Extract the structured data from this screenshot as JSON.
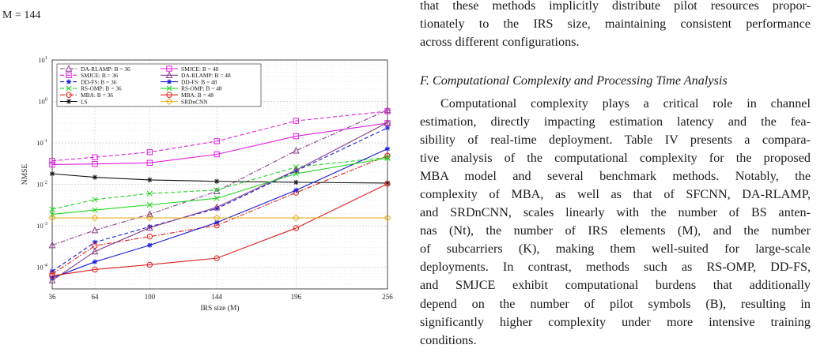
{
  "header_math": "M = 144",
  "right_column": {
    "top_lines": [
      "that these methods implicitly distribute pilot resources propor-",
      "tionately to the IRS size, maintaining consistent performance",
      "across different configurations."
    ],
    "section_heading": "F. Computational Complexity and Processing Time Analysis",
    "paragraph_lines": [
      "Computational complexity plays a critical role in channel",
      "estimation, directly impacting estimation latency and the fea-",
      "sibility of real-time deployment. Table IV presents a compara-",
      "tive analysis of the computational complexity for the proposed",
      "MBA model and several benchmark methods. Notably, the",
      "complexity of MBA, as well as that of SFCNN, DA-RLAMP,",
      "and SRDnCNN, scales linearly with the number of BS anten-",
      "nas (Nt), the number of IRS elements (M), and the number",
      "of subcarriers (K), making them well-suited for large-scale",
      "deployments. In contrast, methods such as RS-OMP, DD-FS,",
      "and SMJCE exhibit computational burdens that additionally",
      "depend on the number of pilot symbols (B), resulting in",
      "significantly higher complexity under more intensive training",
      "conditions."
    ]
  },
  "chart_data": {
    "type": "line",
    "xlabel": "IRS size (M)",
    "ylabel": "NMSE",
    "x": [
      36,
      64,
      100,
      144,
      196,
      256
    ],
    "xlim": [
      36,
      256
    ],
    "yscale": "log",
    "ylim": [
      3e-05,
      10
    ],
    "y_tick_labels": [
      "10^1",
      "10^0",
      "10^-1",
      "10^-2",
      "10^-3",
      "10^-4"
    ],
    "grid": true,
    "legend_position": "top-left",
    "series": [
      {
        "name": "DA-RLAMP: B = 36",
        "color": "#8a3f8a",
        "dash": "dashdot",
        "marker": "triangle",
        "values": [
          0.00034,
          0.00078,
          0.0019,
          0.0068,
          0.065,
          0.62
        ]
      },
      {
        "name": "SMJCE: B = 36",
        "color": "#e01fe0",
        "dash": "dash",
        "marker": "square",
        "values": [
          0.037,
          0.045,
          0.06,
          0.11,
          0.34,
          0.58
        ]
      },
      {
        "name": "DD-FS: B = 36",
        "color": "#1a1ad6",
        "dash": "dash",
        "marker": "star",
        "values": [
          8e-05,
          0.0004,
          0.00095,
          0.0026,
          0.021,
          0.23
        ]
      },
      {
        "name": "RS-OMP: B = 36",
        "color": "#22d622",
        "dash": "dash",
        "marker": "cross",
        "values": [
          0.0025,
          0.0043,
          0.006,
          0.0073,
          0.026,
          0.045
        ]
      },
      {
        "name": "MBA: B = 36",
        "color": "#e02020",
        "dash": "dashdot",
        "marker": "circle",
        "values": [
          6.8e-05,
          0.00033,
          0.00055,
          0.00102,
          0.0063,
          0.049
        ]
      },
      {
        "name": "LS",
        "color": "#111111",
        "dash": "solid",
        "marker": "star",
        "values": [
          0.018,
          0.0148,
          0.0128,
          0.0118,
          0.0112,
          0.0107
        ]
      },
      {
        "name": "SMJCE: B = 48",
        "color": "#e01fe0",
        "dash": "solid",
        "marker": "square",
        "values": [
          0.03,
          0.031,
          0.033,
          0.053,
          0.145,
          0.3
        ]
      },
      {
        "name": "DA-RLAMP: B = 48",
        "color": "#8a3f8a",
        "dash": "solid",
        "marker": "triangle",
        "values": [
          4.8e-05,
          0.00024,
          0.0009,
          0.0028,
          0.022,
          0.31
        ]
      },
      {
        "name": "DD-FS: B = 48",
        "color": "#1a1ad6",
        "dash": "solid",
        "marker": "star",
        "values": [
          5.5e-05,
          0.000135,
          0.00034,
          0.0012,
          0.0072,
          0.072
        ]
      },
      {
        "name": "RS-OMP: B = 48",
        "color": "#22d622",
        "dash": "solid",
        "marker": "cross",
        "values": [
          0.0019,
          0.0024,
          0.0032,
          0.0046,
          0.018,
          0.043
        ]
      },
      {
        "name": "MBA: B = 48",
        "color": "#e02020",
        "dash": "solid",
        "marker": "circle",
        "values": [
          6.2e-05,
          8.8e-05,
          0.000115,
          0.000165,
          0.00088,
          0.0103
        ]
      },
      {
        "name": "SRDnCNN",
        "color": "#e6b020",
        "dash": "solid",
        "marker": "diamond",
        "values": [
          0.00155,
          0.00155,
          0.00155,
          0.00155,
          0.00155,
          0.00155
        ]
      }
    ]
  }
}
